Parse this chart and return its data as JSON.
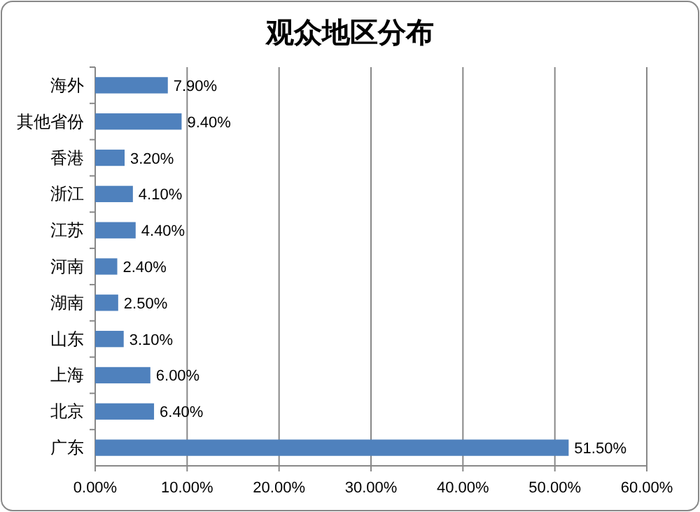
{
  "chart_data": {
    "type": "bar",
    "orientation": "horizontal",
    "title": "观众地区分布",
    "categories": [
      "海外",
      "其他省份",
      "香港",
      "浙江",
      "江苏",
      "河南",
      "湖南",
      "山东",
      "上海",
      "北京",
      "广东"
    ],
    "values": [
      7.9,
      9.4,
      3.2,
      4.1,
      4.4,
      2.4,
      2.5,
      3.1,
      6.0,
      6.4,
      51.5
    ],
    "value_labels": [
      "7.90%",
      "9.40%",
      "3.20%",
      "4.10%",
      "4.40%",
      "2.40%",
      "2.50%",
      "3.10%",
      "6.00%",
      "6.40%",
      "51.50%"
    ],
    "color": "#4f81bd",
    "xlim": [
      0,
      60
    ],
    "xticks": [
      {
        "value": 0,
        "label": "0.00%"
      },
      {
        "value": 10,
        "label": "10.00%"
      },
      {
        "value": 20,
        "label": "20.00%"
      },
      {
        "value": 30,
        "label": "30.00%"
      },
      {
        "value": 40,
        "label": "40.00%"
      },
      {
        "value": 50,
        "label": "50.00%"
      },
      {
        "value": 60,
        "label": "60.00%"
      }
    ],
    "grid": "x"
  }
}
